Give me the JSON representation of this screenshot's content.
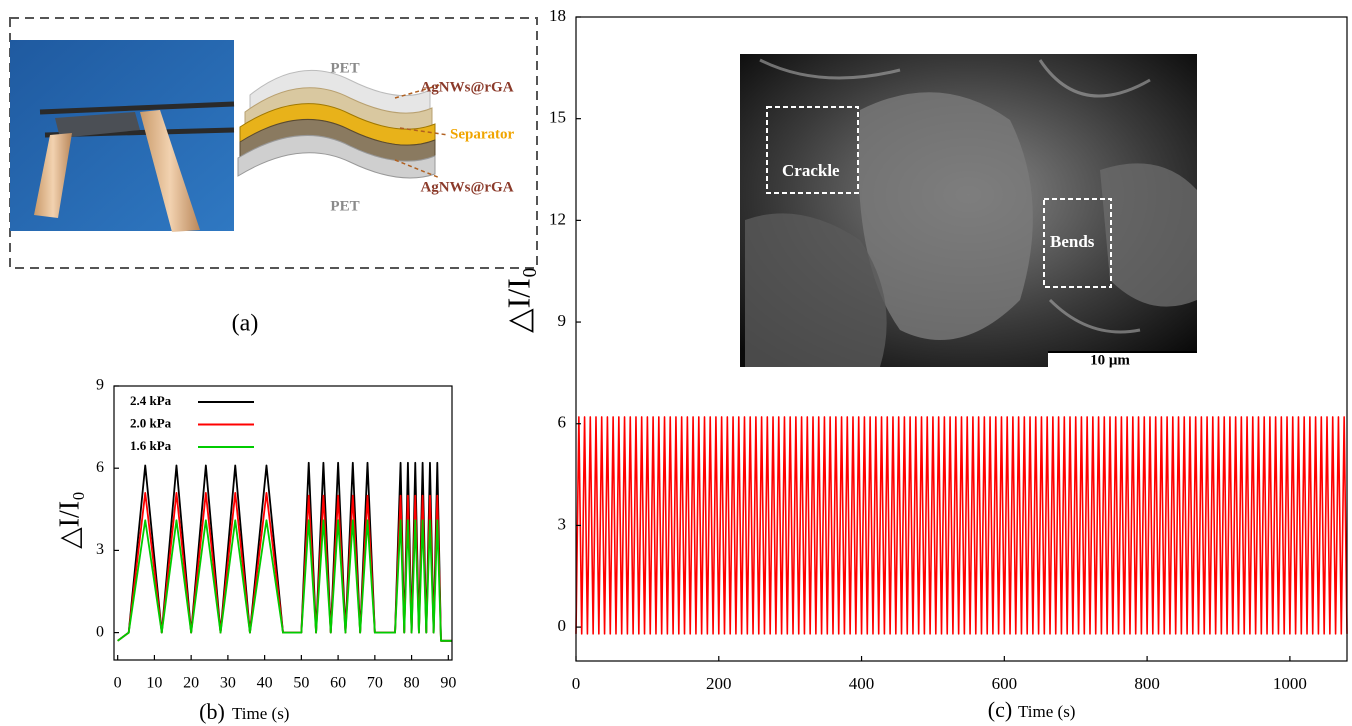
{
  "panel_a": {
    "label": "(a)",
    "layers": {
      "top": "PET",
      "upper": "AgNWs@rGA",
      "middle": "Separator",
      "lower": "AgNWs@rGA",
      "bottom": "PET"
    }
  },
  "chart_data": [
    {
      "type": "line",
      "panel_label": "(b)",
      "x_label": "Time (s)",
      "y_label": "△I/I₀",
      "x": [
        0,
        3,
        7.5,
        12,
        16,
        20,
        24,
        28,
        32,
        36,
        40.5,
        45,
        50,
        52,
        54,
        56,
        58,
        60,
        62,
        64,
        66,
        68,
        70,
        75.5,
        77,
        78,
        79,
        80,
        81,
        82,
        83,
        84,
        85,
        86,
        87,
        88,
        91
      ],
      "xlim": [
        -1,
        91
      ],
      "xticks": [
        0,
        10,
        20,
        30,
        40,
        50,
        60,
        70,
        80,
        90
      ],
      "ylim": [
        -1,
        9
      ],
      "yticks": [
        0,
        3,
        6,
        9
      ],
      "series": [
        {
          "name": "2.4 kPa",
          "color": "#000000",
          "values": [
            -0.3,
            0,
            6.1,
            0,
            6.1,
            0,
            6.1,
            0,
            6.1,
            0,
            6.1,
            0,
            0,
            6.2,
            0,
            6.2,
            0,
            6.2,
            0,
            6.2,
            0,
            6.2,
            0,
            0,
            6.2,
            0,
            6.2,
            0,
            6.2,
            0,
            6.2,
            0,
            6.2,
            0,
            6.2,
            -0.3,
            -0.3
          ]
        },
        {
          "name": "2.0 kPa",
          "color": "#ff0000",
          "values": [
            -0.3,
            0,
            5.1,
            0,
            5.1,
            0,
            5.1,
            0,
            5.1,
            0,
            5.1,
            0,
            0,
            5.0,
            0,
            5.0,
            0,
            5.0,
            0,
            5.0,
            0,
            5.0,
            0,
            0,
            5.0,
            0,
            5.0,
            0,
            5.0,
            0,
            5.0,
            0,
            5.0,
            0,
            5.0,
            -0.3,
            -0.3
          ]
        },
        {
          "name": "1.6 kPa",
          "color": "#00cc00",
          "values": [
            -0.3,
            0,
            4.1,
            0,
            4.1,
            0,
            4.1,
            0,
            4.1,
            0,
            4.1,
            0,
            0,
            4.1,
            0,
            4.1,
            0,
            4.1,
            0,
            4.1,
            0,
            4.1,
            0,
            0,
            4.1,
            0,
            4.1,
            0,
            4.1,
            0,
            4.1,
            0,
            4.1,
            0,
            4.1,
            -0.3,
            -0.3
          ]
        }
      ]
    },
    {
      "type": "line",
      "panel_label": "(c)",
      "x_label": "Time (s)",
      "y_label": "△I/I₀",
      "inset": {
        "marks": [
          "Crackle",
          "Bends"
        ],
        "scale_bar": "10 μm"
      },
      "x": [
        0,
        4,
        8,
        12,
        16,
        20,
        24,
        28,
        32,
        36,
        40,
        44,
        48,
        52,
        56,
        60,
        64,
        68,
        72,
        76,
        80,
        84,
        88,
        92,
        96,
        100,
        104,
        108,
        112,
        116,
        120,
        124,
        128,
        132,
        136,
        140,
        144,
        148,
        152,
        156,
        160,
        164,
        168,
        172,
        176,
        180,
        184,
        188,
        192,
        196,
        200,
        204,
        208,
        212,
        216,
        220,
        224,
        228,
        232,
        236,
        240,
        244,
        248,
        252,
        256,
        260,
        264,
        268,
        272,
        276,
        280,
        284,
        288,
        292,
        296,
        300,
        304,
        308,
        312,
        316,
        320,
        324,
        328,
        332,
        336,
        340,
        344,
        348,
        352,
        356,
        360,
        364,
        368,
        372,
        376,
        380,
        384,
        388,
        392,
        396,
        400,
        404,
        408,
        412,
        416,
        420,
        424,
        428,
        432,
        436,
        440,
        444,
        448,
        452,
        456,
        460,
        464,
        468,
        472,
        476,
        480,
        484,
        488,
        492,
        496,
        500,
        504,
        508,
        512,
        516,
        520,
        524,
        528,
        532,
        536,
        540,
        544,
        548,
        552,
        556,
        560,
        564,
        568,
        572,
        576,
        580,
        584,
        588,
        592,
        596,
        600,
        604,
        608,
        612,
        616,
        620,
        624,
        628,
        632,
        636,
        640,
        644,
        648,
        652,
        656,
        660,
        664,
        668,
        672,
        676,
        680,
        684,
        688,
        692,
        696,
        700,
        704,
        708,
        712,
        716,
        720,
        724,
        728,
        732,
        736,
        740,
        744,
        748,
        752,
        756,
        760,
        764,
        768,
        772,
        776,
        780,
        784,
        788,
        792,
        796,
        800,
        804,
        808,
        812,
        816,
        820,
        824,
        828,
        832,
        836,
        840,
        844,
        848,
        852,
        856,
        860,
        864,
        868,
        872,
        876,
        880,
        884,
        888,
        892,
        896,
        900,
        904,
        908,
        912,
        916,
        920,
        924,
        928,
        932,
        936,
        940,
        944,
        948,
        952,
        956,
        960,
        964,
        968,
        972,
        976,
        980,
        984,
        988,
        992,
        996,
        1000,
        1004,
        1008,
        1012,
        1016,
        1020,
        1024,
        1028,
        1032,
        1036,
        1040,
        1044,
        1048,
        1052,
        1056,
        1060,
        1064,
        1068,
        1072,
        1076,
        1080
      ],
      "xlim": [
        0,
        1080
      ],
      "xticks": [
        0,
        200,
        400,
        600,
        800,
        1000
      ],
      "ylim": [
        -1,
        18
      ],
      "yticks": [
        0,
        3,
        6,
        9,
        12,
        15,
        18
      ],
      "series": [
        {
          "color": "#ff0000",
          "values": [
            -0.2,
            6.2,
            -0.2,
            6.2,
            -0.2,
            6.2,
            -0.2,
            6.2,
            -0.2,
            6.2,
            -0.2,
            6.2,
            -0.2,
            6.2,
            -0.2,
            6.2,
            -0.2,
            6.2,
            -0.2,
            6.2,
            -0.2,
            6.2,
            -0.2,
            6.2,
            -0.2,
            6.2,
            -0.2,
            6.2,
            -0.2,
            6.2,
            -0.2,
            6.2,
            -0.2,
            6.2,
            -0.2,
            6.2,
            -0.2,
            6.2,
            -0.2,
            6.2,
            -0.2,
            6.2,
            -0.2,
            6.2,
            -0.2,
            6.2,
            -0.2,
            6.2,
            -0.2,
            6.2,
            -0.2,
            6.2,
            -0.2,
            6.2,
            -0.2,
            6.2,
            -0.2,
            6.2,
            -0.2,
            6.2,
            -0.2,
            6.2,
            -0.2,
            6.2,
            -0.2,
            6.2,
            -0.2,
            6.2,
            -0.2,
            6.2,
            -0.2,
            6.2,
            -0.2,
            6.2,
            -0.2,
            6.2,
            -0.2,
            6.2,
            -0.2,
            6.2,
            -0.2,
            6.2,
            -0.2,
            6.2,
            -0.2,
            6.2,
            -0.2,
            6.2,
            -0.2,
            6.2,
            -0.2,
            6.2,
            -0.2,
            6.2,
            -0.2,
            6.2,
            -0.2,
            6.2,
            -0.2,
            6.2,
            -0.2,
            6.2,
            -0.2,
            6.2,
            -0.2,
            6.2,
            -0.2,
            6.2,
            -0.2,
            6.2,
            -0.2,
            6.2,
            -0.2,
            6.2,
            -0.2,
            6.2,
            -0.2,
            6.2,
            -0.2,
            6.2,
            -0.2,
            6.2,
            -0.2,
            6.2,
            -0.2,
            6.2,
            -0.2,
            6.2,
            -0.2,
            6.2,
            -0.2,
            6.2,
            -0.2,
            6.2,
            -0.2,
            6.2,
            -0.2,
            6.2,
            -0.2,
            6.2,
            -0.2,
            6.2,
            -0.2,
            6.2,
            -0.2,
            6.2,
            -0.2,
            6.2,
            -0.2,
            6.2,
            -0.2,
            6.2,
            -0.2,
            6.2,
            -0.2,
            6.2,
            -0.2,
            6.2,
            -0.2,
            6.2,
            -0.2,
            6.2,
            -0.2,
            6.2,
            -0.2,
            6.2,
            -0.2,
            6.2,
            -0.2,
            6.2,
            -0.2,
            6.2,
            -0.2,
            6.2,
            -0.2,
            6.2,
            -0.2,
            6.2,
            -0.2,
            6.2,
            -0.2,
            6.2,
            -0.2,
            6.2,
            -0.2,
            6.2,
            -0.2,
            6.2,
            -0.2,
            6.2,
            -0.2,
            6.2,
            -0.2,
            6.2,
            -0.2,
            6.2,
            -0.2,
            6.2,
            -0.2,
            6.2,
            -0.2,
            6.2,
            -0.2,
            6.2,
            -0.2,
            6.2,
            -0.2,
            6.2,
            -0.2,
            6.2,
            -0.2,
            6.2,
            -0.2,
            6.2,
            -0.2,
            6.2,
            -0.2,
            6.2,
            -0.2,
            6.2,
            -0.2,
            6.2,
            -0.2,
            6.2,
            -0.2,
            6.2,
            -0.2,
            6.2,
            -0.2,
            6.2,
            -0.2,
            6.2,
            -0.2,
            6.2,
            -0.2,
            6.2,
            -0.2,
            6.2,
            -0.2,
            6.2,
            -0.2,
            6.2,
            -0.2,
            6.2,
            -0.2,
            6.2,
            -0.2,
            6.2,
            -0.2,
            6.2,
            -0.2,
            6.2,
            -0.2,
            6.2,
            -0.2,
            6.2,
            -0.2,
            6.2,
            -0.2,
            6.2,
            -0.2,
            6.2,
            -0.2,
            6.2,
            -0.2,
            6.2,
            -0.2,
            6.2,
            -0.2,
            6.2,
            -0.2
          ]
        }
      ]
    }
  ]
}
